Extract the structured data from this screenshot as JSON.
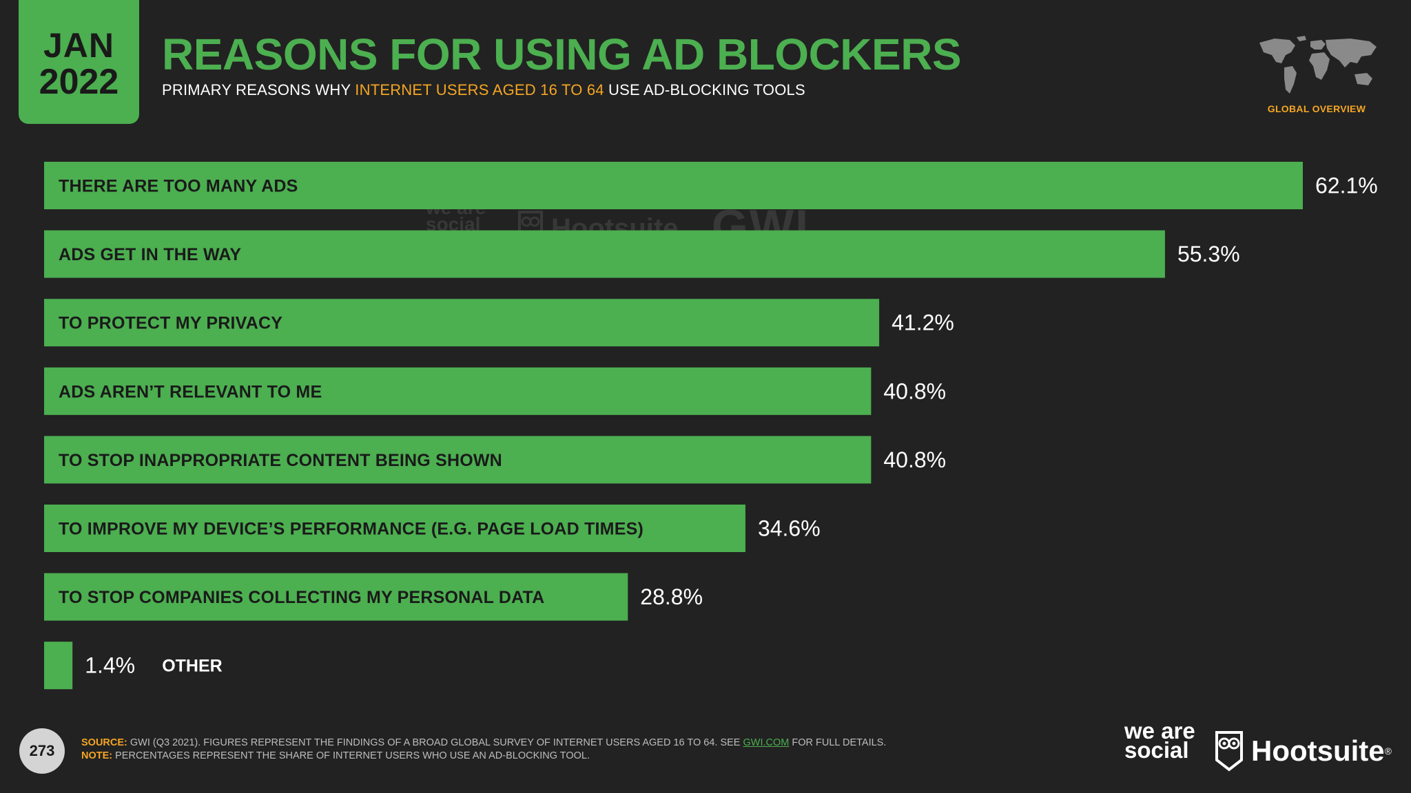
{
  "header": {
    "date_month": "JAN",
    "date_year": "2022",
    "title": "REASONS FOR USING AD BLOCKERS",
    "subtitle_pre": "PRIMARY REASONS WHY ",
    "subtitle_highlight": "INTERNET USERS AGED 16 TO 64",
    "subtitle_post": " USE AD-BLOCKING TOOLS",
    "section": "GLOBAL OVERVIEW",
    "map_icon": "world-map-icon"
  },
  "watermark": {
    "we_are_social": "we are social",
    "hootsuite": "Hootsuite",
    "gwi": "GWI."
  },
  "chart_data": {
    "type": "bar",
    "orientation": "horizontal",
    "categories": [
      "THERE ARE TOO MANY ADS",
      "ADS GET IN THE WAY",
      "TO PROTECT MY PRIVACY",
      "ADS AREN’T RELEVANT TO ME",
      "TO STOP INAPPROPRIATE CONTENT BEING SHOWN",
      "TO IMPROVE MY DEVICE’S PERFORMANCE (E.G. PAGE LOAD TIMES)",
      "TO STOP COMPANIES COLLECTING MY PERSONAL DATA",
      "OTHER"
    ],
    "values": [
      62.1,
      55.3,
      41.2,
      40.8,
      40.8,
      34.6,
      28.8,
      1.4
    ],
    "value_labels": [
      "62.1%",
      "55.3%",
      "41.2%",
      "40.8%",
      "40.8%",
      "34.6%",
      "28.8%",
      "1.4%"
    ],
    "xlim": [
      0,
      62.1
    ],
    "grid": false,
    "bar_color": "#4caf50"
  },
  "footer": {
    "page_number": "273",
    "source_key": "SOURCE:",
    "source_text": " GWI (Q3 2021). FIGURES REPRESENT THE FINDINGS OF A BROAD GLOBAL SURVEY OF INTERNET USERS AGED 16 TO 64. SEE ",
    "source_link": "GWI.COM",
    "source_tail": " FOR FULL DETAILS.",
    "note_key": "NOTE:",
    "note_text": " PERCENTAGES REPRESENT THE SHARE OF INTERNET USERS WHO USE AN AD-BLOCKING TOOL.",
    "logo_we_are_social": "we are social",
    "logo_hootsuite": "Hootsuite",
    "logo_reg": "®"
  },
  "colors": {
    "background": "#222222",
    "accent_green": "#4caf50",
    "highlight_orange": "#f5a623"
  }
}
